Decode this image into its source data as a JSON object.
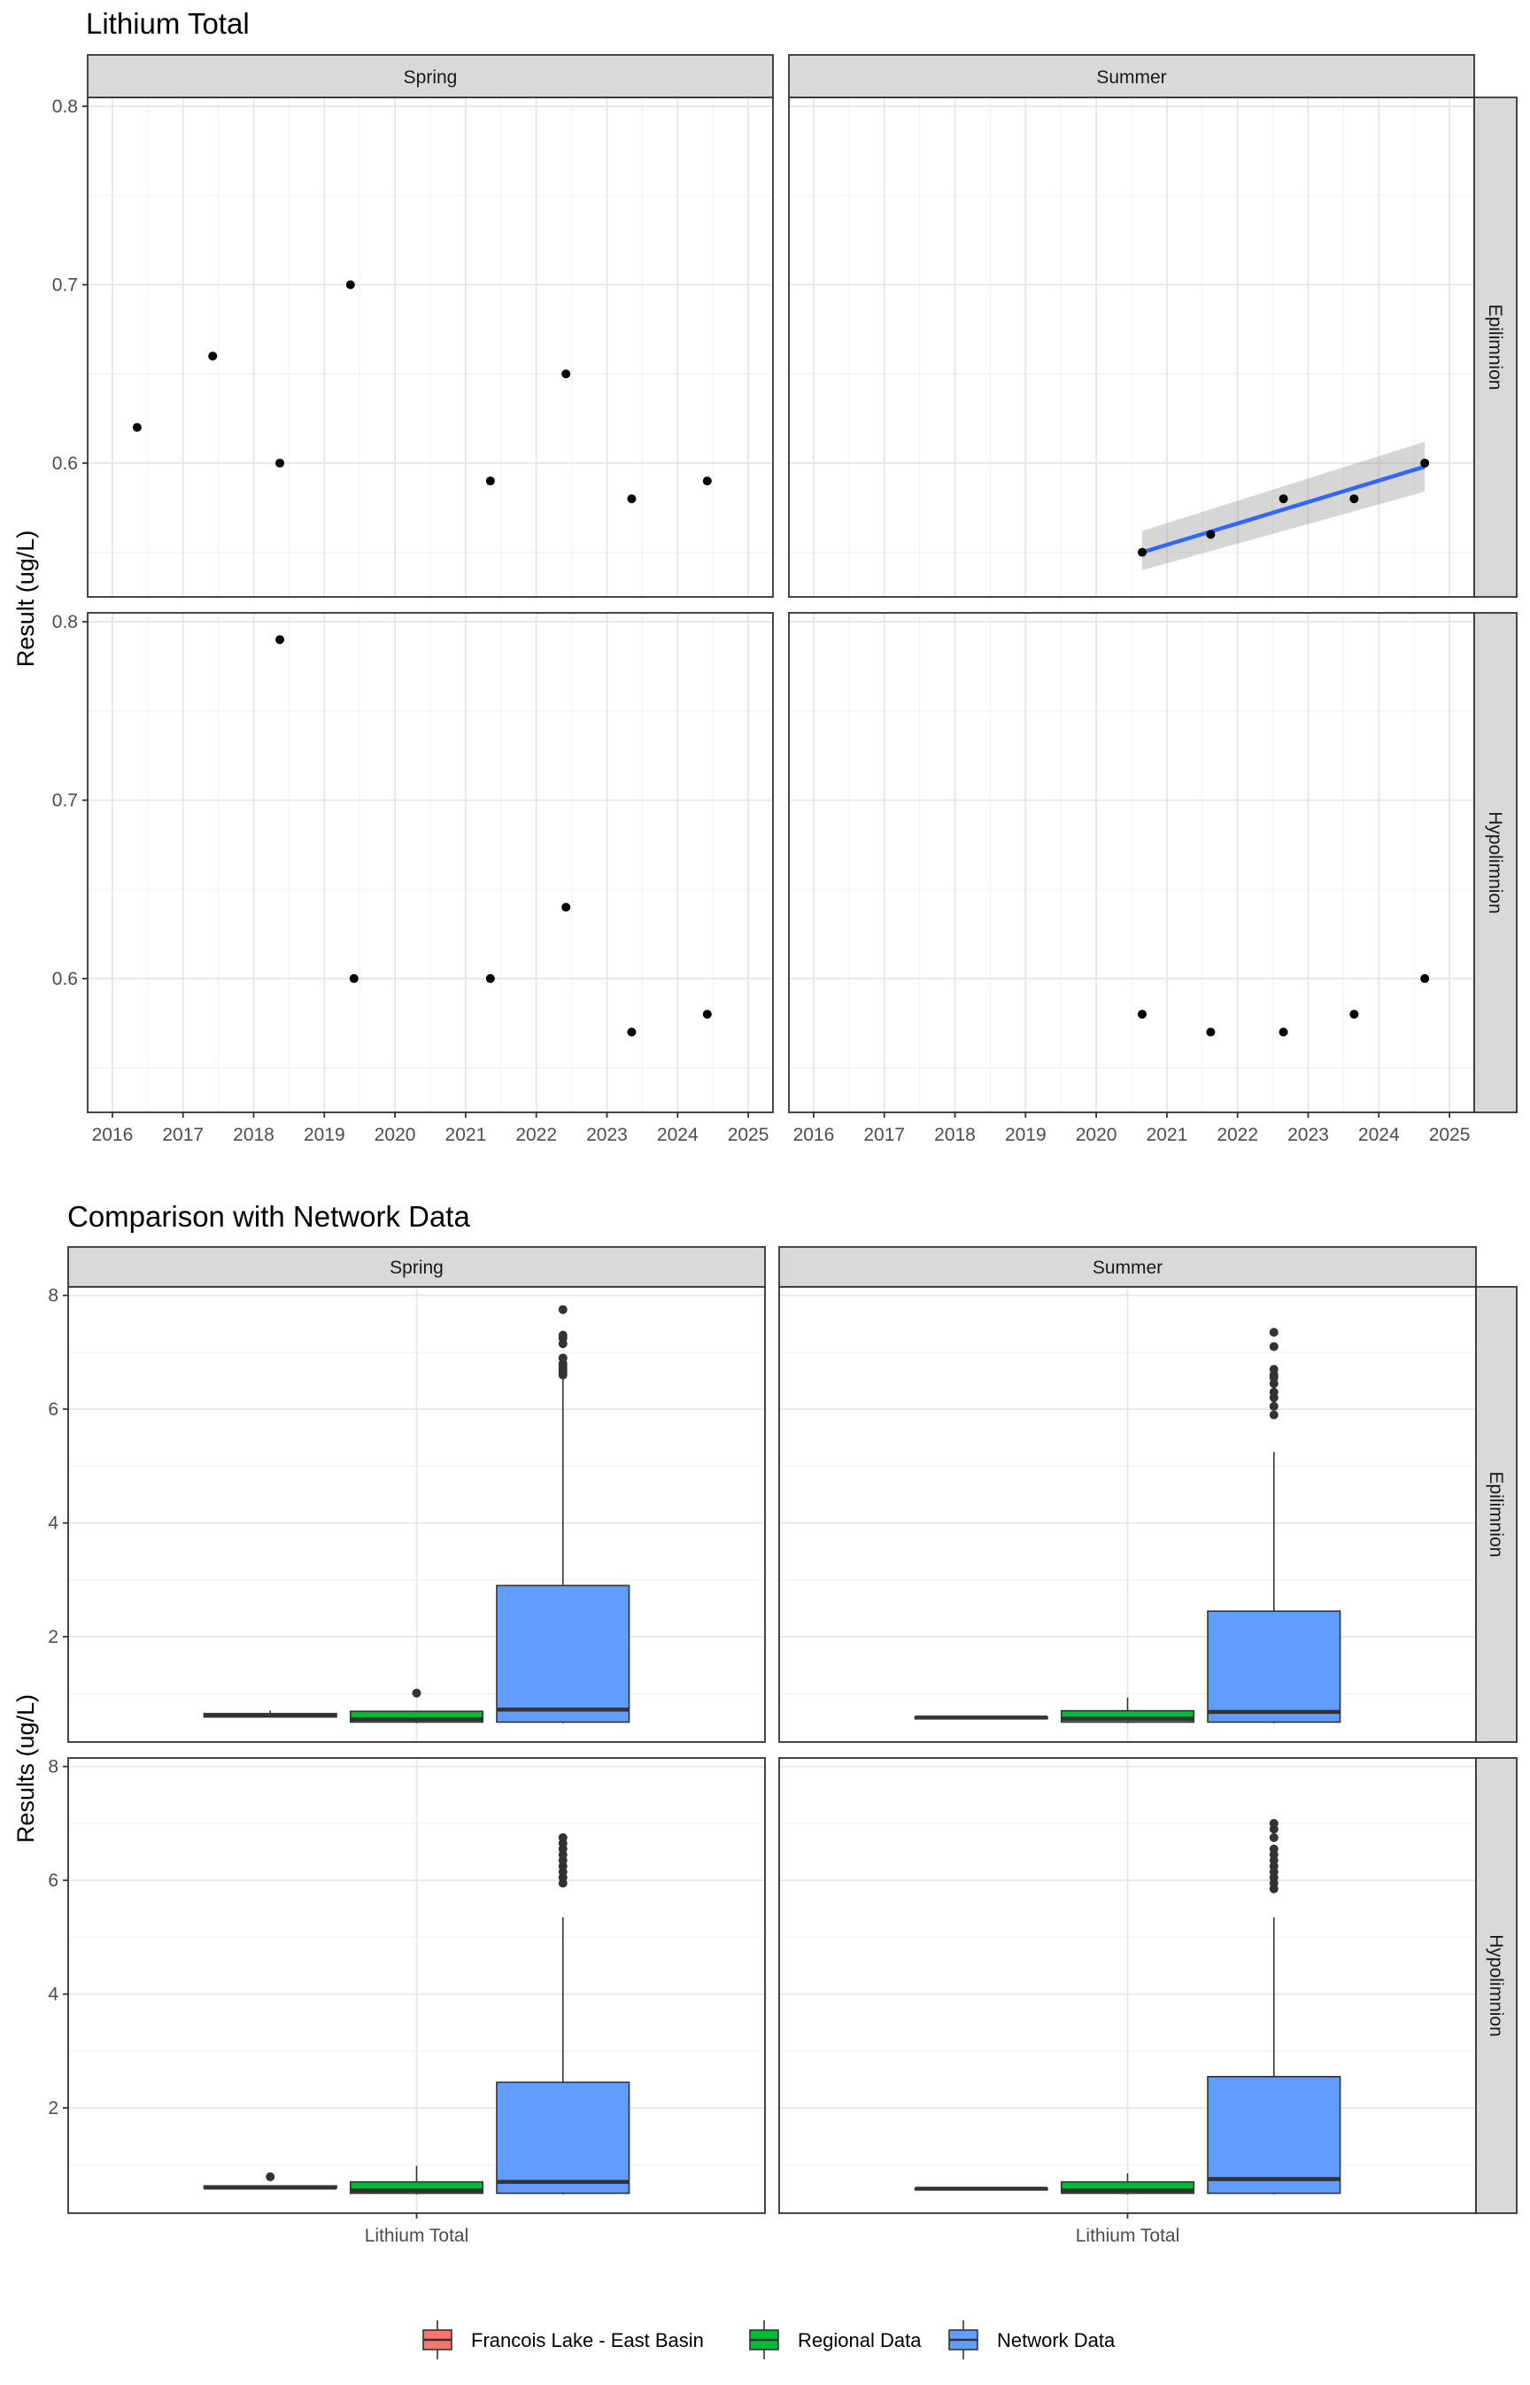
{
  "chart_data": [
    {
      "type": "scatter",
      "title": "Lithium Total",
      "ylabel": "Result (ug/L)",
      "xlabel": "",
      "facet_columns": [
        "Spring",
        "Summer"
      ],
      "facet_rows": [
        "Epilimnion",
        "Hypolimnion"
      ],
      "xlim": [
        2015.65,
        2025.35
      ],
      "x_ticks": [
        2016,
        2017,
        2018,
        2019,
        2020,
        2021,
        2022,
        2023,
        2024,
        2025
      ],
      "ylim": [
        0.525,
        0.805
      ],
      "y_ticks": [
        0.6,
        0.7,
        0.8
      ],
      "grid": true,
      "panels": [
        {
          "column": "Spring",
          "row": "Epilimnion",
          "points": [
            {
              "x": 2016.35,
              "y": 0.62
            },
            {
              "x": 2017.42,
              "y": 0.66
            },
            {
              "x": 2018.37,
              "y": 0.6
            },
            {
              "x": 2019.37,
              "y": 0.7
            },
            {
              "x": 2021.35,
              "y": 0.59
            },
            {
              "x": 2022.42,
              "y": 0.65
            },
            {
              "x": 2023.35,
              "y": 0.58
            },
            {
              "x": 2024.42,
              "y": 0.59
            }
          ]
        },
        {
          "column": "Summer",
          "row": "Epilimnion",
          "points": [
            {
              "x": 2020.65,
              "y": 0.55
            },
            {
              "x": 2021.62,
              "y": 0.56
            },
            {
              "x": 2022.65,
              "y": 0.58
            },
            {
              "x": 2023.65,
              "y": 0.58
            },
            {
              "x": 2024.65,
              "y": 0.6
            }
          ],
          "trend": {
            "x": [
              2020.65,
              2024.65
            ],
            "y": [
              0.55,
              0.598
            ],
            "ci_low": [
              0.54,
              0.584
            ],
            "ci_high": [
              0.562,
              0.612
            ],
            "color": "#3366FF"
          }
        },
        {
          "column": "Spring",
          "row": "Hypolimnion",
          "points": [
            {
              "x": 2018.37,
              "y": 0.79
            },
            {
              "x": 2019.42,
              "y": 0.6
            },
            {
              "x": 2021.35,
              "y": 0.6
            },
            {
              "x": 2022.42,
              "y": 0.64
            },
            {
              "x": 2023.35,
              "y": 0.57
            },
            {
              "x": 2024.42,
              "y": 0.58
            }
          ]
        },
        {
          "column": "Summer",
          "row": "Hypolimnion",
          "points": [
            {
              "x": 2020.65,
              "y": 0.58
            },
            {
              "x": 2021.62,
              "y": 0.57
            },
            {
              "x": 2022.65,
              "y": 0.57
            },
            {
              "x": 2023.65,
              "y": 0.58
            },
            {
              "x": 2024.65,
              "y": 0.6
            }
          ]
        }
      ]
    },
    {
      "type": "box",
      "title": "Comparison with Network Data",
      "ylabel": "Results (ug/L)",
      "xlabel": "",
      "category": "Lithium Total",
      "facet_columns": [
        "Spring",
        "Summer"
      ],
      "facet_rows": [
        "Epilimnion",
        "Hypolimnion"
      ],
      "ylim": [
        0.15,
        8.15
      ],
      "y_ticks": [
        2,
        4,
        6,
        8
      ],
      "grid": true,
      "legend_position": "bottom",
      "legend": [
        {
          "label": "Francois Lake - East Basin",
          "color": "#F8766D"
        },
        {
          "label": "Regional Data",
          "color": "#00BA38"
        },
        {
          "label": "Network Data",
          "color": "#619CFF"
        }
      ],
      "panels": [
        {
          "column": "Spring",
          "row": "Epilimnion",
          "boxes": [
            {
              "group": "Francois Lake - East Basin",
              "q1": 0.59,
              "median": 0.62,
              "q3": 0.65,
              "whisker_low": 0.58,
              "whisker_high": 0.7,
              "outliers": []
            },
            {
              "group": "Regional Data",
              "q1": 0.5,
              "median": 0.55,
              "q3": 0.69,
              "whisker_low": 0.48,
              "whisker_high": 0.7,
              "outliers": [
                1.01
              ]
            },
            {
              "group": "Network Data",
              "q1": 0.5,
              "median": 0.72,
              "q3": 2.9,
              "whisker_low": 0.48,
              "whisker_high": 6.55,
              "outliers": [
                6.6,
                6.65,
                6.7,
                6.75,
                6.8,
                6.9,
                7.15,
                7.25,
                7.3,
                7.75
              ]
            }
          ]
        },
        {
          "column": "Summer",
          "row": "Epilimnion",
          "boxes": [
            {
              "group": "Francois Lake - East Basin",
              "q1": 0.56,
              "median": 0.58,
              "q3": 0.59,
              "whisker_low": 0.55,
              "whisker_high": 0.6,
              "outliers": []
            },
            {
              "group": "Regional Data",
              "q1": 0.5,
              "median": 0.56,
              "q3": 0.7,
              "whisker_low": 0.48,
              "whisker_high": 0.93,
              "outliers": []
            },
            {
              "group": "Network Data",
              "q1": 0.5,
              "median": 0.68,
              "q3": 2.45,
              "whisker_low": 0.48,
              "whisker_high": 5.25,
              "outliers": [
                5.9,
                6.05,
                6.2,
                6.3,
                6.45,
                6.55,
                6.6,
                6.7,
                7.1,
                7.35
              ]
            }
          ]
        },
        {
          "column": "Spring",
          "row": "Hypolimnion",
          "boxes": [
            {
              "group": "Francois Lake - East Basin",
              "q1": 0.59,
              "median": 0.6,
              "q3": 0.63,
              "whisker_low": 0.57,
              "whisker_high": 0.64,
              "outliers": [
                0.79
              ]
            },
            {
              "group": "Regional Data",
              "q1": 0.5,
              "median": 0.55,
              "q3": 0.7,
              "whisker_low": 0.48,
              "whisker_high": 0.98,
              "outliers": []
            },
            {
              "group": "Network Data",
              "q1": 0.5,
              "median": 0.7,
              "q3": 2.45,
              "whisker_low": 0.48,
              "whisker_high": 5.35,
              "outliers": [
                5.95,
                6.05,
                6.15,
                6.25,
                6.35,
                6.45,
                6.55,
                6.65,
                6.75
              ]
            }
          ]
        },
        {
          "column": "Summer",
          "row": "Hypolimnion",
          "boxes": [
            {
              "group": "Francois Lake - East Basin",
              "q1": 0.57,
              "median": 0.58,
              "q3": 0.58,
              "whisker_low": 0.57,
              "whisker_high": 0.6,
              "outliers": []
            },
            {
              "group": "Regional Data",
              "q1": 0.5,
              "median": 0.55,
              "q3": 0.7,
              "whisker_low": 0.48,
              "whisker_high": 0.85,
              "outliers": []
            },
            {
              "group": "Network Data",
              "q1": 0.5,
              "median": 0.75,
              "q3": 2.55,
              "whisker_low": 0.48,
              "whisker_high": 5.35,
              "outliers": [
                5.85,
                5.95,
                6.05,
                6.15,
                6.25,
                6.35,
                6.45,
                6.55,
                6.75,
                6.9,
                7.0
              ]
            }
          ]
        }
      ]
    }
  ]
}
